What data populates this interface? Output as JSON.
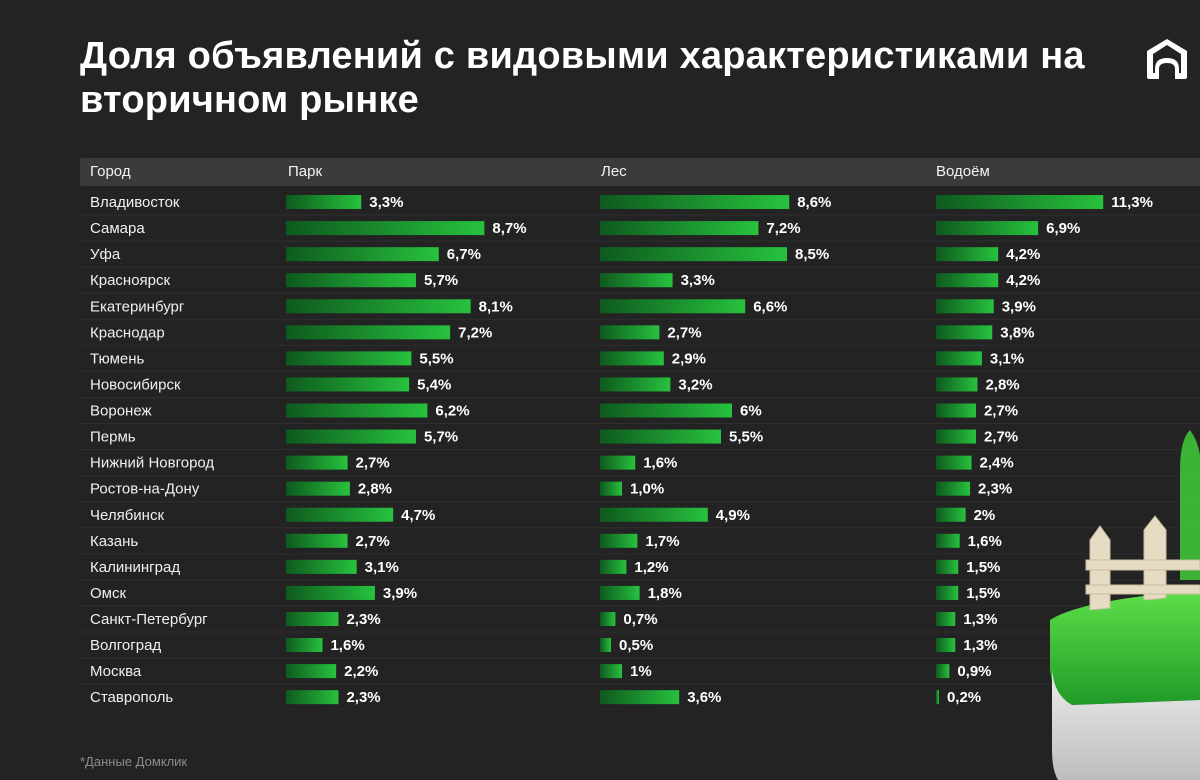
{
  "title": "Доля объявлений с видовыми характеристиками на вторичном рынке",
  "footnote": "*Данные Домклик",
  "colors": {
    "bar_start": "#0e5a1e",
    "bar_end": "#27c23e",
    "background": "#232323",
    "header_bg": "#3b3b3b"
  },
  "icons": [
    "domclick-logo-icon",
    "fence-decoration"
  ],
  "chart_data": {
    "type": "bar",
    "orientation": "horizontal",
    "header": {
      "city": "Город",
      "park": "Парк",
      "forest": "Лес",
      "water": "Водоём"
    },
    "rows": [
      {
        "city": "Владивосток",
        "park": 3.3,
        "park_label": "3,3%",
        "forest": 8.6,
        "forest_label": "8,6%",
        "water": 11.3,
        "water_label": "11,3%"
      },
      {
        "city": "Самара",
        "park": 8.7,
        "park_label": "8,7%",
        "forest": 7.2,
        "forest_label": "7,2%",
        "water": 6.9,
        "water_label": "6,9%"
      },
      {
        "city": "Уфа",
        "park": 6.7,
        "park_label": "6,7%",
        "forest": 8.5,
        "forest_label": "8,5%",
        "water": 4.2,
        "water_label": "4,2%"
      },
      {
        "city": "Красноярск",
        "park": 5.7,
        "park_label": "5,7%",
        "forest": 3.3,
        "forest_label": "3,3%",
        "water": 4.2,
        "water_label": "4,2%"
      },
      {
        "city": "Екатеринбург",
        "park": 8.1,
        "park_label": "8,1%",
        "forest": 6.6,
        "forest_label": "6,6%",
        "water": 3.9,
        "water_label": "3,9%"
      },
      {
        "city": "Краснодар",
        "park": 7.2,
        "park_label": "7,2%",
        "forest": 2.7,
        "forest_label": "2,7%",
        "water": 3.8,
        "water_label": "3,8%"
      },
      {
        "city": "Тюмень",
        "park": 5.5,
        "park_label": "5,5%",
        "forest": 2.9,
        "forest_label": "2,9%",
        "water": 3.1,
        "water_label": "3,1%"
      },
      {
        "city": "Новосибирск",
        "park": 5.4,
        "park_label": "5,4%",
        "forest": 3.2,
        "forest_label": "3,2%",
        "water": 2.8,
        "water_label": "2,8%"
      },
      {
        "city": "Воронеж",
        "park": 6.2,
        "park_label": "6,2%",
        "forest": 6.0,
        "forest_label": "6%",
        "water": 2.7,
        "water_label": "2,7%"
      },
      {
        "city": "Пермь",
        "park": 5.7,
        "park_label": "5,7%",
        "forest": 5.5,
        "forest_label": "5,5%",
        "water": 2.7,
        "water_label": "2,7%"
      },
      {
        "city": "Нижний Новгород",
        "park": 2.7,
        "park_label": "2,7%",
        "forest": 1.6,
        "forest_label": "1,6%",
        "water": 2.4,
        "water_label": "2,4%"
      },
      {
        "city": "Ростов-на-Дону",
        "park": 2.8,
        "park_label": "2,8%",
        "forest": 1.0,
        "forest_label": "1,0%",
        "water": 2.3,
        "water_label": "2,3%"
      },
      {
        "city": "Челябинск",
        "park": 4.7,
        "park_label": "4,7%",
        "forest": 4.9,
        "forest_label": "4,9%",
        "water": 2.0,
        "water_label": "2%"
      },
      {
        "city": "Казань",
        "park": 2.7,
        "park_label": "2,7%",
        "forest": 1.7,
        "forest_label": "1,7%",
        "water": 1.6,
        "water_label": "1,6%"
      },
      {
        "city": "Калининград",
        "park": 3.1,
        "park_label": "3,1%",
        "forest": 1.2,
        "forest_label": "1,2%",
        "water": 1.5,
        "water_label": "1,5%"
      },
      {
        "city": "Омск",
        "park": 3.9,
        "park_label": "3,9%",
        "forest": 1.8,
        "forest_label": "1,8%",
        "water": 1.5,
        "water_label": "1,5%"
      },
      {
        "city": "Санкт-Петербург",
        "park": 2.3,
        "park_label": "2,3%",
        "forest": 0.7,
        "forest_label": "0,7%",
        "water": 1.3,
        "water_label": "1,3%"
      },
      {
        "city": "Волгоград",
        "park": 1.6,
        "park_label": "1,6%",
        "forest": 0.5,
        "forest_label": "0,5%",
        "water": 1.3,
        "water_label": "1,3%"
      },
      {
        "city": "Москва",
        "park": 2.2,
        "park_label": "2,2%",
        "forest": 1.0,
        "forest_label": "1%",
        "water": 0.9,
        "water_label": "0,9%"
      },
      {
        "city": "Ставрополь",
        "park": 2.3,
        "park_label": "2,3%",
        "forest": 3.6,
        "forest_label": "3,6%",
        "water": 0.2,
        "water_label": "0,2%"
      }
    ]
  }
}
